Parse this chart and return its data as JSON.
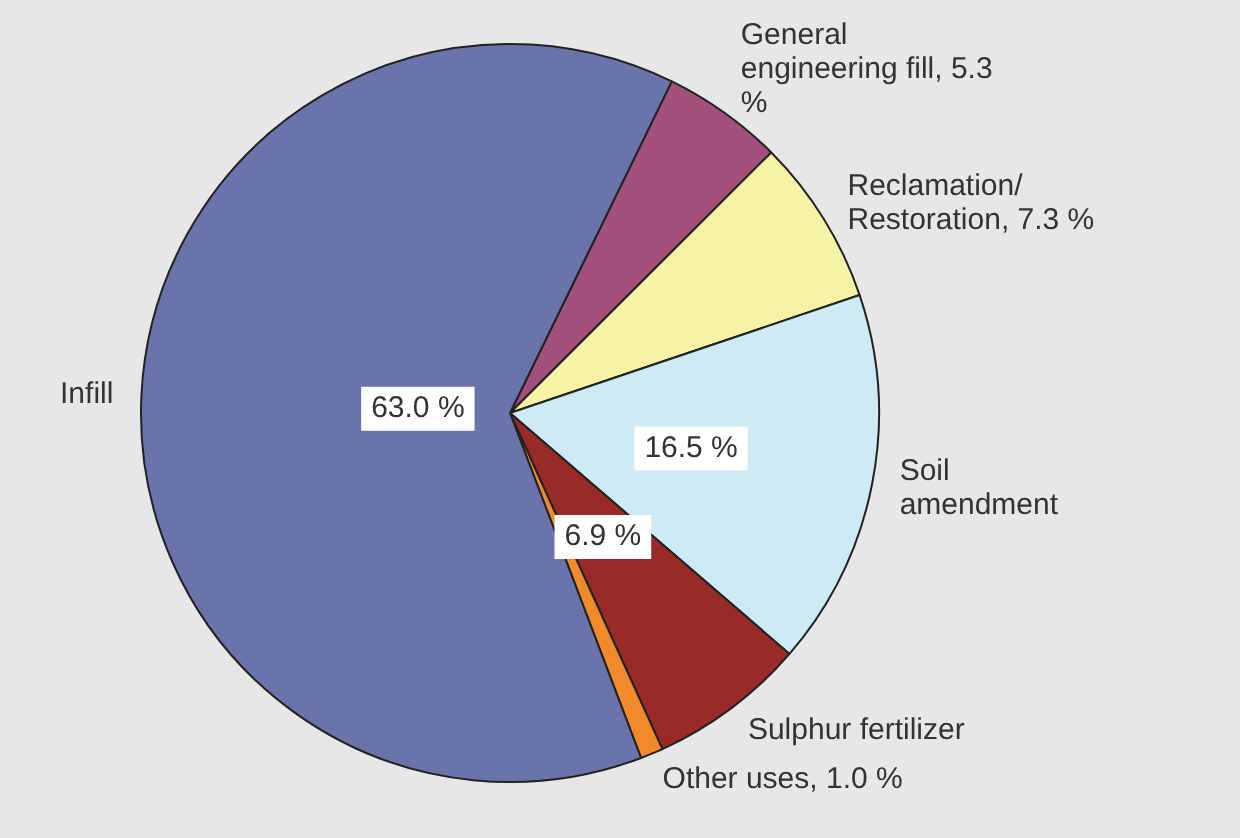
{
  "chart_data": {
    "type": "pie",
    "categories": [
      "General engineering fill",
      "Reclamation/Restoration",
      "Soil amendment",
      "Sulphur fertilizer",
      "Other uses",
      "Infill"
    ],
    "values": [
      5.3,
      7.3,
      16.5,
      6.9,
      1.0,
      63.0
    ],
    "colors": [
      "#a3507c",
      "#f7f3a6",
      "#cdeaf5",
      "#992a27",
      "#f08a2a",
      "#6a74aa"
    ],
    "value_labels": [
      "5.3 %",
      "7.3 %",
      "16.5 %",
      "6.9 %",
      "1.0 %",
      "63.0 %"
    ],
    "legend": false
  }
}
